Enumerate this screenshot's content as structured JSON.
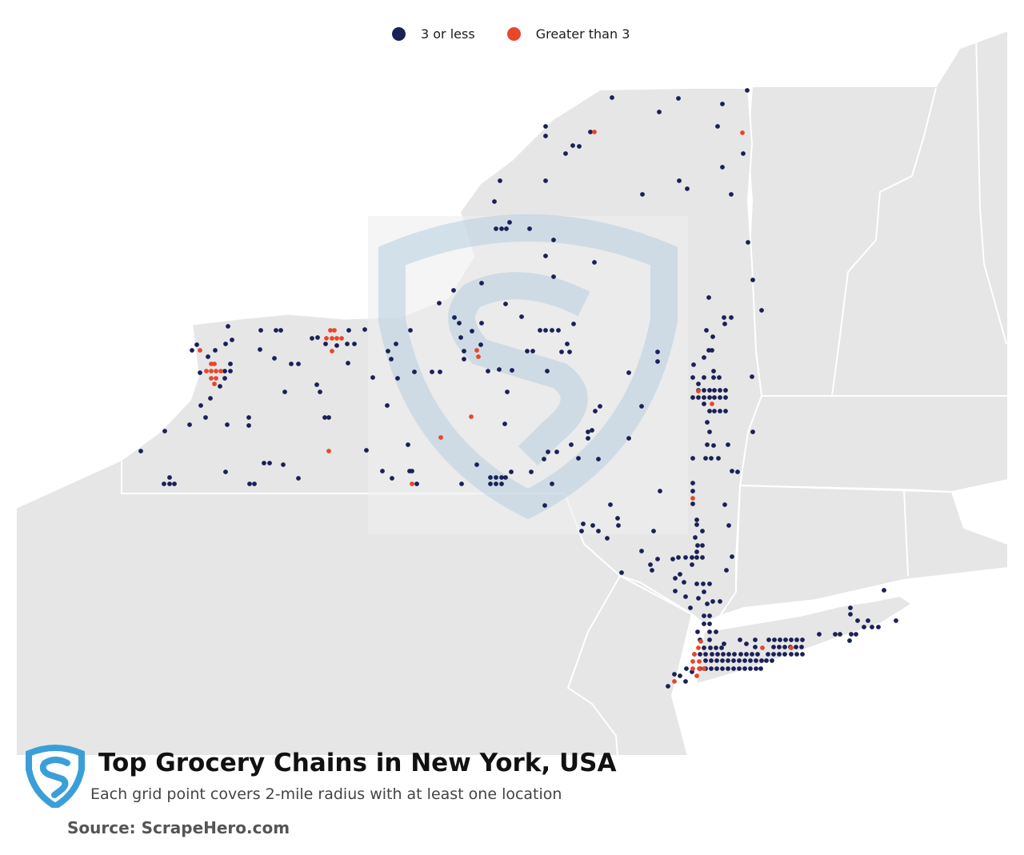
{
  "legend": {
    "items": [
      {
        "label": "3 or less",
        "color": "#1a2157"
      },
      {
        "label": "Greater than 3",
        "color": "#e8472a"
      }
    ]
  },
  "title": "Top Grocery Chains in New York, USA",
  "subtitle": "Each grid point covers 2-mile radius with at least one location",
  "source": "Source: ScrapeHero.com",
  "map": {
    "region": "New York, USA",
    "land_color": "#e6e6e6",
    "border_color": "#ffffff",
    "watermark": "ScrapeHero shield logo"
  }
}
